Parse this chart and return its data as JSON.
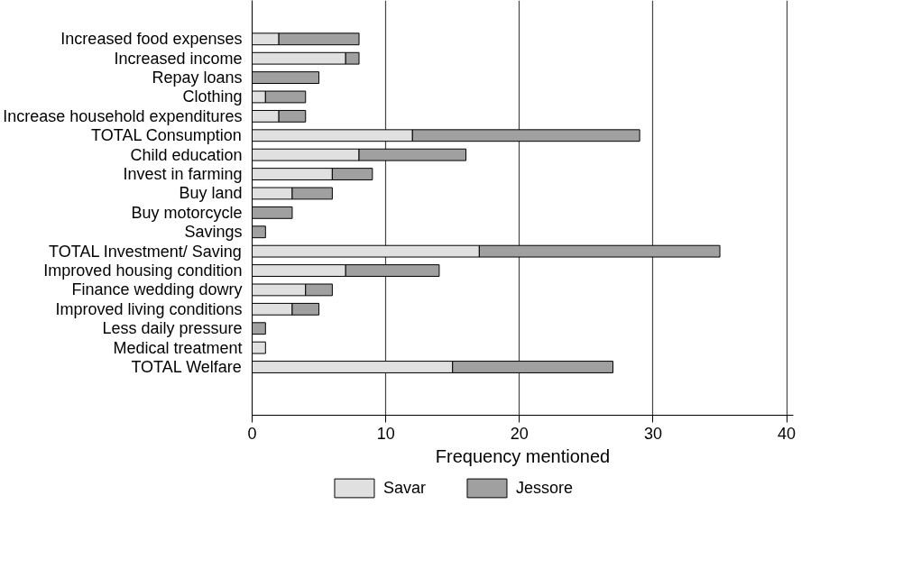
{
  "chart_data": {
    "type": "bar",
    "orientation": "horizontal",
    "stacked": true,
    "xlabel": "Frequency mentioned",
    "categories": [
      "Increased food expenses",
      "Increased income",
      "Repay loans",
      "Clothing",
      "Increase household expenditures",
      "TOTAL Consumption",
      "Child education",
      "Invest in farming",
      "Buy land",
      "Buy motorcycle",
      "Savings",
      "TOTAL Investment/ Saving",
      "Improved housing condition",
      "Finance wedding dowry",
      "Improved living conditions",
      "Less daily pressure",
      "Medical treatment",
      "TOTAL Welfare"
    ],
    "series": [
      {
        "name": "Savar",
        "color": "#e0e0e0",
        "values": [
          2,
          7,
          0,
          1,
          2,
          12,
          8,
          6,
          3,
          0,
          0,
          17,
          7,
          4,
          3,
          0,
          1,
          15
        ]
      },
      {
        "name": "Jessore",
        "color": "#a0a0a0",
        "values": [
          6,
          1,
          5,
          3,
          2,
          17,
          8,
          3,
          3,
          3,
          1,
          18,
          7,
          2,
          2,
          1,
          0,
          12
        ]
      }
    ],
    "xlim": [
      0,
      40.5
    ],
    "xticks": [
      0,
      10,
      20,
      30,
      40
    ],
    "grid": "x",
    "legend": "bottom"
  }
}
